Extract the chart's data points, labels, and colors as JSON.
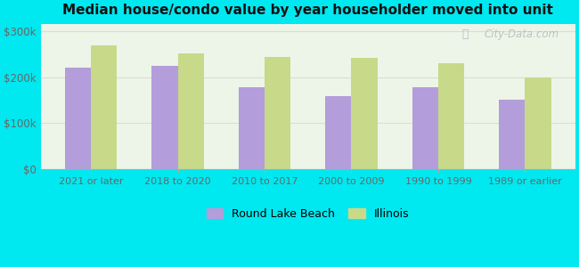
{
  "title": "Median house/condo value by year householder moved into unit",
  "categories": [
    "2021 or later",
    "2018 to 2020",
    "2010 to 2017",
    "2000 to 2009",
    "1990 to 1999",
    "1989 or earlier"
  ],
  "round_lake_beach": [
    220000,
    225000,
    178000,
    158000,
    178000,
    152000
  ],
  "illinois": [
    270000,
    251000,
    243000,
    242000,
    231000,
    200000
  ],
  "bar_color_rlb": "#b39ddb",
  "bar_color_il": "#c8d98a",
  "background_outer": "#00e8f0",
  "background_inner_topleft": "#e8f5e9",
  "background_inner_bottomright": "#f8fff8",
  "yticks": [
    0,
    100000,
    200000,
    300000
  ],
  "ytick_labels": [
    "$0",
    "$100k",
    "$200k",
    "$300k"
  ],
  "ylim": [
    0,
    315000
  ],
  "legend_rlb": "Round Lake Beach",
  "legend_il": "Illinois",
  "watermark": "City-Data.com"
}
